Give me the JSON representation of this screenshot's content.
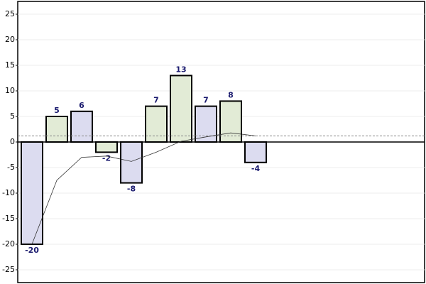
{
  "chart_data": {
    "type": "bar",
    "values": [
      -20,
      5,
      6,
      -2,
      -8,
      7,
      13,
      7,
      8,
      -4
    ],
    "colors": [
      "#dcdcf0",
      "#e2ebd6",
      "#dcdcf0",
      "#e2ebd6",
      "#dcdcf0",
      "#e2ebd6",
      "#e2ebd6",
      "#dcdcf0",
      "#e2ebd6",
      "#dcdcf0"
    ],
    "line": {
      "values": [
        -20,
        -7.5,
        -3,
        -2.75,
        -3.8,
        -2,
        0.14,
        1,
        1.78,
        1.2
      ],
      "color": "#333333"
    },
    "average": 1.2,
    "ylim": [
      -27.5,
      27.5
    ],
    "yticks": [
      -25,
      -20,
      -15,
      -10,
      -5,
      0,
      5,
      10,
      15,
      20,
      25
    ],
    "grid": true
  }
}
